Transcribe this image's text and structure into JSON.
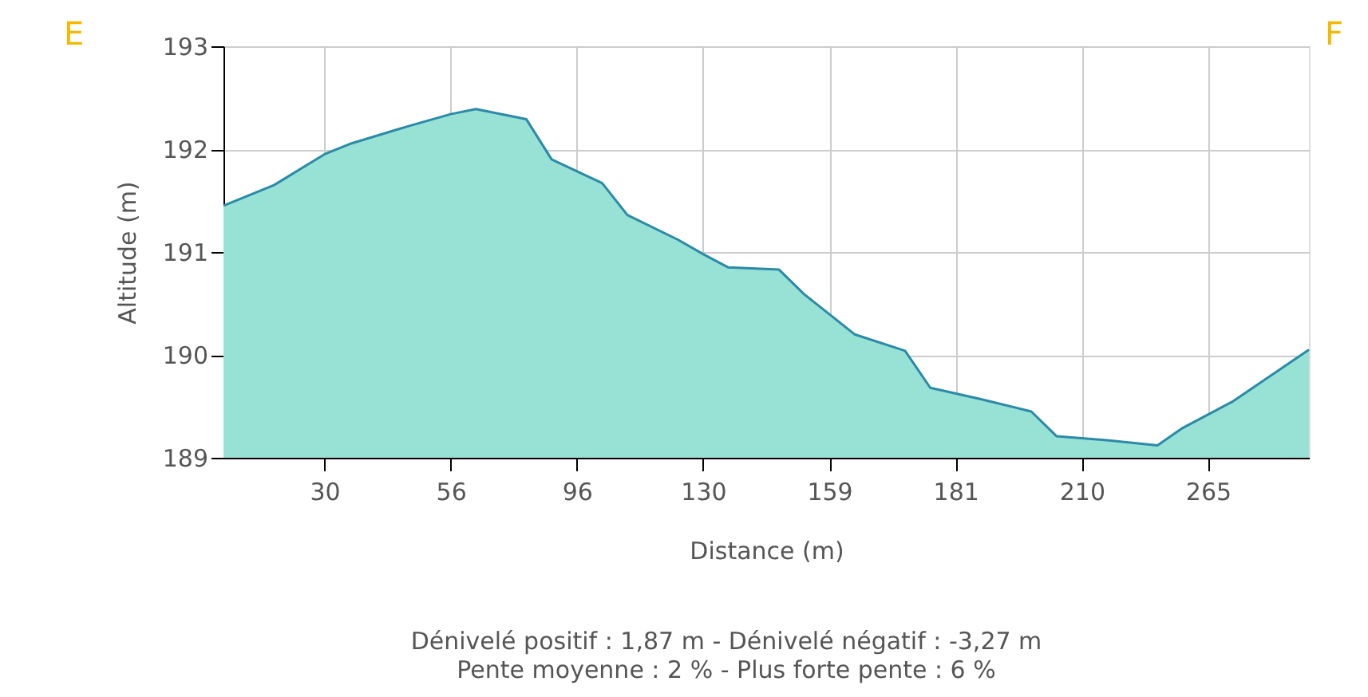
{
  "chart_data": {
    "type": "area",
    "xlabel": "Distance (m)",
    "ylabel": "Altitude (m)",
    "categories": [
      null,
      null,
      null,
      null,
      "30",
      null,
      null,
      null,
      null,
      "56",
      null,
      null,
      null,
      null,
      "96",
      null,
      null,
      null,
      null,
      "130",
      null,
      null,
      null,
      null,
      "159",
      null,
      null,
      null,
      null,
      "181",
      null,
      null,
      null,
      null,
      "210",
      null,
      null,
      null,
      null,
      "265",
      null,
      null,
      null,
      null
    ],
    "series": [
      {
        "color": "#98e2d5",
        "values": [
          191.45,
          null,
          191.65,
          null,
          191.95,
          192.05,
          null,
          192.2,
          null,
          192.34,
          192.39,
          null,
          192.29,
          191.9,
          null,
          191.67,
          191.36,
          null,
          191.12,
          190.98,
          190.85,
          null,
          190.83,
          190.59,
          null,
          190.2,
          null,
          190.04,
          189.68,
          null,
          189.57,
          null,
          189.45,
          189.21,
          null,
          189.17,
          null,
          189.12,
          189.29,
          null,
          189.55,
          null,
          null,
          190.05
        ]
      }
    ],
    "ylim": [
      189,
      193
    ],
    "yticks": [
      189,
      190,
      191,
      192,
      193
    ],
    "grid": true,
    "annotations": [
      "E",
      "F",
      "Dénivelé positif : 1,87 m - Dénivelé négatif : -3,27 m",
      "Pente moyenne : 2 % - Plus forte pente : 6 %"
    ]
  }
}
